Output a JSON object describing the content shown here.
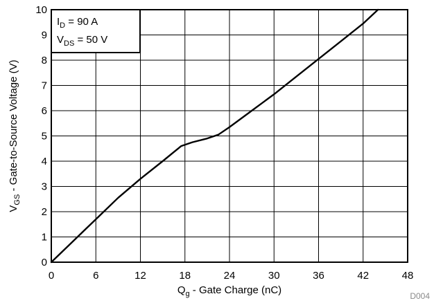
{
  "chart_data": {
    "type": "line",
    "xlabel": {
      "main": "Q",
      "sub": "g",
      "rest": " - Gate Charge (nC)"
    },
    "ylabel": {
      "main": "V",
      "sub": "GS",
      "rest": " - Gate-to-Source Voltage (V)"
    },
    "xlim": [
      0,
      48
    ],
    "ylim": [
      0,
      10
    ],
    "x_ticks": [
      0,
      6,
      12,
      18,
      24,
      30,
      36,
      42,
      48
    ],
    "y_ticks": [
      0,
      1,
      2,
      3,
      4,
      5,
      6,
      7,
      8,
      9,
      10
    ],
    "grid": true,
    "legend_position": "top-left",
    "annotations": [
      {
        "main": "I",
        "sub": "D",
        "rest": " = 90 A"
      },
      {
        "main": "V",
        "sub": "DS",
        "rest": " = 50 V"
      }
    ],
    "series": [
      {
        "color": "#000000",
        "points": [
          [
            0,
            0
          ],
          [
            3,
            0.85
          ],
          [
            6,
            1.7
          ],
          [
            9,
            2.55
          ],
          [
            12,
            3.3
          ],
          [
            15,
            4.0
          ],
          [
            17.5,
            4.6
          ],
          [
            19,
            4.75
          ],
          [
            21,
            4.9
          ],
          [
            22.5,
            5.05
          ],
          [
            24,
            5.35
          ],
          [
            27,
            6.0
          ],
          [
            30,
            6.65
          ],
          [
            33,
            7.35
          ],
          [
            36,
            8.05
          ],
          [
            39,
            8.75
          ],
          [
            42,
            9.45
          ],
          [
            44,
            10.0
          ]
        ]
      }
    ]
  },
  "figure_code": "D004"
}
